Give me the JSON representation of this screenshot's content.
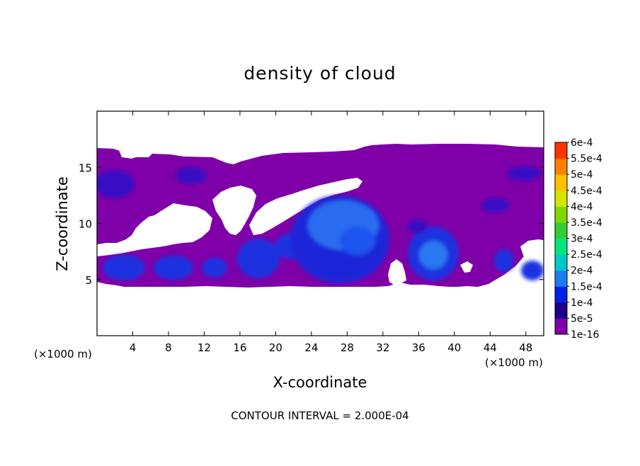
{
  "chart_data": {
    "type": "heatmap",
    "title": "density of cloud",
    "xlabel": "X-coordinate",
    "ylabel": "Z-coordinate",
    "x_unit": "(×1000 m)",
    "y_unit": "(×1000 m)",
    "xlim": [
      0,
      50
    ],
    "ylim": [
      0,
      20
    ],
    "x_ticks": [
      4,
      8,
      12,
      16,
      20,
      24,
      28,
      32,
      36,
      40,
      44,
      48
    ],
    "y_ticks": [
      5,
      10,
      15
    ],
    "footer": "CONTOUR INTERVAL = 2.000E-04",
    "colorbar": {
      "labels": [
        "1e-16",
        "5e-5",
        "1e-4",
        "1.5e-4",
        "2e-4",
        "2.5e-4",
        "3e-4",
        "3.5e-4",
        "4e-4",
        "4.5e-4",
        "5e-4",
        "5.5e-4",
        "6e-4"
      ],
      "colors": [
        "#7f00a8",
        "#1c008c",
        "#0021e6",
        "#1a7df0",
        "#00c8c8",
        "#00e67a",
        "#33cc33",
        "#7fd900",
        "#d4e600",
        "#ffbf00",
        "#ff7f00",
        "#ff3300",
        "#ff9999"
      ]
    },
    "regions": [
      {
        "name": "cloud-layer-purple",
        "value_band": "1e-16",
        "color": "#7f00a8",
        "x": [
          0,
          50
        ],
        "z": [
          4.3,
          17
        ]
      },
      {
        "name": "core-upper-left",
        "value_band": "5e-5",
        "color": "#3a10c8",
        "x": [
          0,
          5
        ],
        "z": [
          12,
          15
        ]
      },
      {
        "name": "core-center",
        "value_band": "1e-4",
        "color": "#1f3cf0",
        "x": [
          22,
          32
        ],
        "z": [
          4.5,
          12
        ]
      },
      {
        "name": "core-right",
        "value_band": "1e-4",
        "color": "#1f3cf0",
        "x": [
          34,
          41
        ],
        "z": [
          4.5,
          10
        ]
      },
      {
        "name": "max-center",
        "value_band": "1.5e-4",
        "color": "#2a78f0",
        "x": [
          25,
          30
        ],
        "z": [
          8,
          11
        ]
      }
    ]
  }
}
